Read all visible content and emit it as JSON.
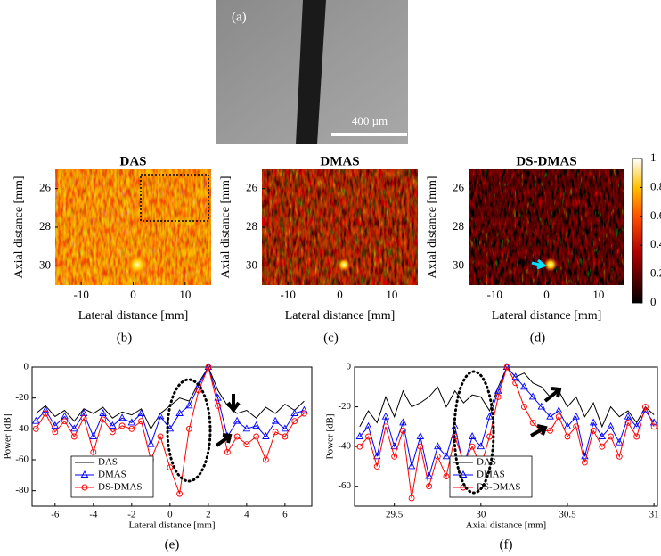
{
  "panel_a": {
    "label": "(a)",
    "scale_bar": "400 µm"
  },
  "images": [
    {
      "title": "DAS",
      "label": "(b)"
    },
    {
      "title": "DMAS",
      "label": "(c)"
    },
    {
      "title": "DS-DMAS",
      "label": "(d)"
    }
  ],
  "image_axes": {
    "xlabel": "Lateral distance [mm]",
    "ylabel": "Axial distance [mm]",
    "xlim": [
      -15,
      15
    ],
    "ylim": [
      25,
      31
    ],
    "xticks": [
      -10,
      0,
      10
    ],
    "yticks": [
      26,
      28,
      30
    ]
  },
  "colorbar": {
    "ylim": [
      0,
      1
    ],
    "yticks": [
      0,
      0.2,
      0.4,
      0.6,
      0.8,
      1
    ]
  },
  "chart_data": [
    {
      "type": "line",
      "label": "(e)",
      "xlabel": "Lateral distance [mm]",
      "ylabel": "Power [dB]",
      "x": [
        -7,
        -6.5,
        -6,
        -5.5,
        -5,
        -4.5,
        -4,
        -3.5,
        -3,
        -2.5,
        -2,
        -1.5,
        -1,
        -0.5,
        0,
        0.5,
        1,
        1.5,
        2,
        2.5,
        3,
        3.5,
        4,
        4.5,
        5,
        5.5,
        6,
        6.5,
        7
      ],
      "series": [
        {
          "name": "DAS",
          "color": "#000000",
          "values": [
            -30,
            -25,
            -32,
            -28,
            -35,
            -27,
            -30,
            -26,
            -33,
            -29,
            -31,
            -27,
            -40,
            -30,
            -25,
            -20,
            -22,
            -10,
            0,
            -15,
            -25,
            -30,
            -28,
            -33,
            -26,
            -30,
            -24,
            -28,
            -22
          ]
        },
        {
          "name": "DMAS",
          "color": "#0000ff",
          "values": [
            -35,
            -28,
            -38,
            -32,
            -40,
            -30,
            -45,
            -30,
            -38,
            -33,
            -36,
            -30,
            -50,
            -32,
            -40,
            -30,
            -25,
            -12,
            0,
            -20,
            -45,
            -35,
            -40,
            -38,
            -45,
            -35,
            -40,
            -30,
            -28
          ]
        },
        {
          "name": "DS-DMAS",
          "color": "#ff0000",
          "values": [
            -40,
            -30,
            -42,
            -35,
            -45,
            -33,
            -55,
            -34,
            -42,
            -38,
            -40,
            -35,
            -60,
            -45,
            -65,
            -82,
            -40,
            -15,
            0,
            -25,
            -55,
            -45,
            -50,
            -45,
            -60,
            -42,
            -45,
            -35,
            -30
          ]
        }
      ],
      "xlim": [
        -7.2,
        7.4
      ],
      "ylim": [
        -90,
        0
      ],
      "xticks": [
        -6,
        -4,
        -2,
        0,
        2,
        4,
        6
      ],
      "yticks": [
        -80,
        -60,
        -40,
        -20,
        0
      ],
      "legend": "lower left"
    },
    {
      "type": "line",
      "label": "(f)",
      "xlabel": "Axial distance [mm]",
      "ylabel": "Power [dB]",
      "x": [
        29.3,
        29.35,
        29.4,
        29.45,
        29.5,
        29.55,
        29.6,
        29.65,
        29.7,
        29.75,
        29.8,
        29.85,
        29.9,
        29.95,
        30,
        30.05,
        30.1,
        30.15,
        30.2,
        30.25,
        30.3,
        30.35,
        30.4,
        30.45,
        30.5,
        30.55,
        30.6,
        30.65,
        30.7,
        30.75,
        30.8,
        30.85,
        30.9,
        30.95,
        31
      ],
      "series": [
        {
          "name": "DAS",
          "color": "#000000",
          "values": [
            -30,
            -22,
            -28,
            -15,
            -25,
            -12,
            -20,
            -18,
            -15,
            -10,
            -20,
            -12,
            -18,
            -14,
            -15,
            -22,
            -10,
            0,
            -5,
            -3,
            -8,
            -10,
            -15,
            -12,
            -20,
            -15,
            -25,
            -18,
            -30,
            -20,
            -25,
            -22,
            -28,
            -20,
            -24
          ]
        },
        {
          "name": "DMAS",
          "color": "#0000ff",
          "values": [
            -35,
            -30,
            -45,
            -25,
            -40,
            -28,
            -50,
            -35,
            -55,
            -40,
            -45,
            -30,
            -50,
            -35,
            -40,
            -25,
            -12,
            0,
            -5,
            -10,
            -15,
            -20,
            -25,
            -22,
            -30,
            -25,
            -45,
            -28,
            -35,
            -30,
            -38,
            -25,
            -30,
            -22,
            -28
          ]
        },
        {
          "name": "DS-DMAS",
          "color": "#ff0000",
          "values": [
            -40,
            -35,
            -50,
            -30,
            -45,
            -32,
            -66,
            -40,
            -60,
            -45,
            -55,
            -35,
            -48,
            -40,
            -50,
            -35,
            -15,
            0,
            -8,
            -20,
            -28,
            -32,
            -32,
            -25,
            -35,
            -30,
            -48,
            -32,
            -40,
            -35,
            -45,
            -28,
            -35,
            -20,
            -30
          ]
        }
      ],
      "xlim": [
        29.27,
        31.02
      ],
      "ylim": [
        -70,
        0
      ],
      "xticks": [
        29.5,
        30,
        30.5,
        31
      ],
      "yticks": [
        -60,
        -40,
        -20,
        0
      ],
      "legend": "lower left"
    }
  ]
}
